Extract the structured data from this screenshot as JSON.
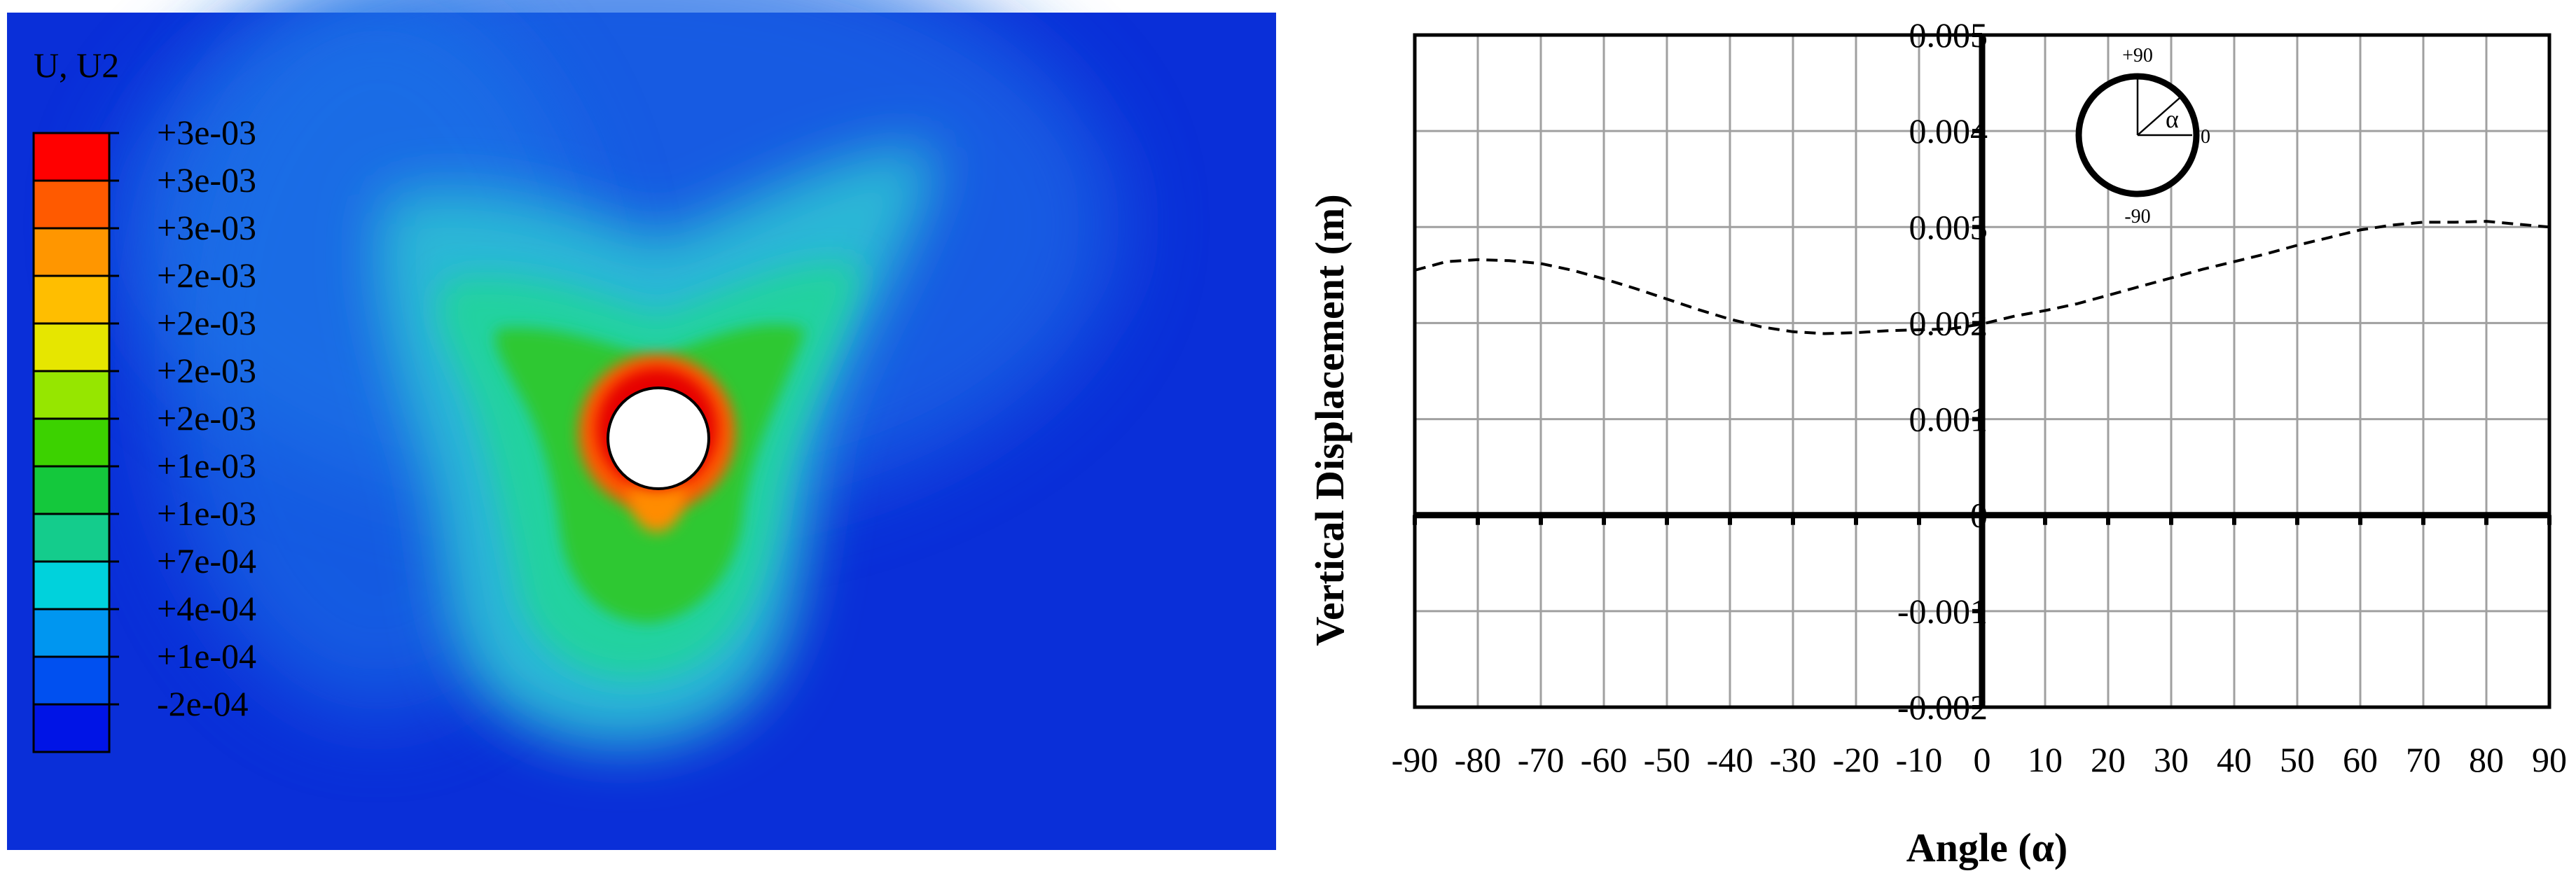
{
  "contour": {
    "title": "U, U2",
    "legend_labels": [
      "+3e-03",
      "+3e-03",
      "+3e-03",
      "+2e-03",
      "+2e-03",
      "+2e-03",
      "+2e-03",
      "+1e-03",
      "+1e-03",
      "+7e-04",
      "+4e-04",
      "+1e-04",
      "-2e-04"
    ],
    "legend_colors": [
      "#ff0000",
      "#ff5a00",
      "#ff9600",
      "#ffbe00",
      "#e6e600",
      "#96e600",
      "#3cd200",
      "#14c83c",
      "#14cc8c",
      "#00d2dc",
      "#0096f0",
      "#0050f0",
      "#0014e6"
    ],
    "background_color": "#0a2fd8",
    "colormap": "rainbow (blue-cyan-green-yellow-orange-red)"
  },
  "chart_data": {
    "type": "line",
    "xlabel": "Angle (α)",
    "ylabel": "Vertical Displacement (m)",
    "xlim": [
      -90,
      90
    ],
    "ylim": [
      -0.002,
      0.005
    ],
    "x_ticks": [
      -90,
      -80,
      -70,
      -60,
      -50,
      -40,
      -30,
      -20,
      -10,
      0,
      10,
      20,
      30,
      40,
      50,
      60,
      70,
      80,
      90
    ],
    "y_ticks": [
      -0.002,
      -0.001,
      0,
      0.001,
      0.002,
      0.003,
      0.004,
      0.005
    ],
    "y_tick_labels": [
      "-0.002",
      "-0.001",
      "0",
      "0.001",
      "0.002",
      "0.003",
      "0.004",
      "0.005"
    ],
    "grid": true,
    "series": [
      {
        "line_style": "dashed",
        "color": "#000000",
        "x": [
          -90,
          -85,
          -80,
          -75,
          -70,
          -65,
          -60,
          -55,
          -50,
          -45,
          -40,
          -35,
          -30,
          -25,
          -20,
          -15,
          -10,
          -5,
          0,
          5,
          10,
          15,
          20,
          25,
          30,
          35,
          40,
          45,
          50,
          55,
          60,
          65,
          70,
          75,
          80,
          85,
          90
        ],
        "y": [
          0.00255,
          0.00264,
          0.00266,
          0.00265,
          0.00262,
          0.00255,
          0.00246,
          0.00236,
          0.00225,
          0.00214,
          0.00204,
          0.00196,
          0.00191,
          0.00189,
          0.0019,
          0.00192,
          0.00193,
          0.00194,
          0.00199,
          0.00207,
          0.00213,
          0.0022,
          0.00229,
          0.00238,
          0.00247,
          0.00256,
          0.00264,
          0.00272,
          0.00281,
          0.00289,
          0.00297,
          0.00302,
          0.00305,
          0.00305,
          0.00306,
          0.00303,
          0.003
        ]
      }
    ],
    "inset": {
      "labels": [
        "+90",
        "-90",
        "0",
        "α"
      ]
    }
  }
}
